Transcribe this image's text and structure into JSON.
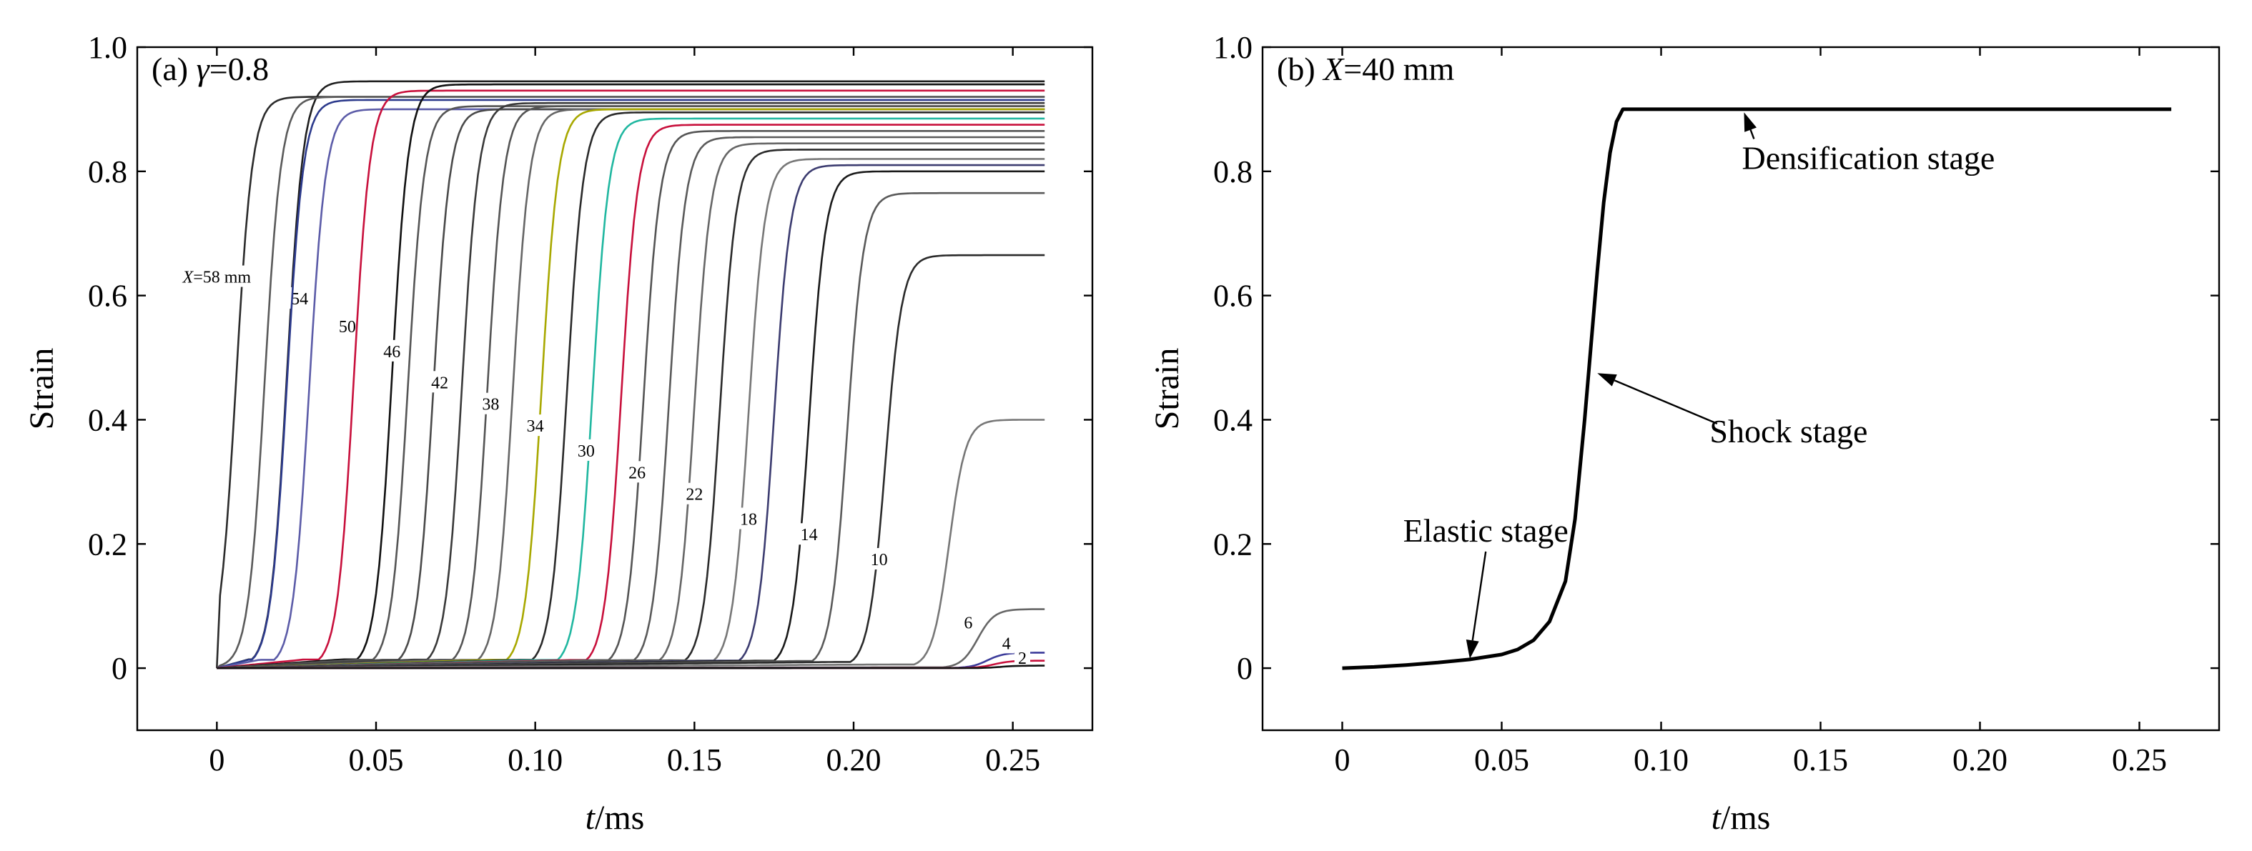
{
  "chart_data": [
    {
      "type": "line",
      "panel_label": "(a)",
      "title_symbol": "γ",
      "title_value": "=0.8",
      "xlabel_var": "t",
      "xlabel_unit": "/ms",
      "ylabel": "Strain",
      "xlim": [
        -0.025,
        0.275
      ],
      "ylim": [
        -0.1,
        1.0
      ],
      "xticks": [
        0,
        0.05,
        0.1,
        0.15,
        0.2,
        0.25
      ],
      "xtick_labels": [
        "0",
        "0.05",
        "0.10",
        "0.15",
        "0.20",
        "0.25"
      ],
      "yticks": [
        0,
        0.2,
        0.4,
        0.6,
        0.8,
        1.0
      ],
      "ytick_labels": [
        "0",
        "0.2",
        "0.4",
        "0.6",
        "0.8",
        "1.0"
      ],
      "grid": false,
      "curve_x_prefix": "X",
      "curve_x_suffix": "=58 mm",
      "series": [
        {
          "name": "58",
          "label": "X=58 mm",
          "t_mid": 0.006,
          "final": 0.92,
          "color": "#2b2b2b",
          "label_at": [
            0.0,
            0.63
          ]
        },
        {
          "name": "56",
          "t_mid": 0.022,
          "final": 0.945,
          "color": "#1f1f1f"
        },
        {
          "name": "54",
          "label": "54",
          "t_mid": 0.015,
          "final": 0.92,
          "color": "#5a5a5a",
          "label_at": [
            0.026,
            0.595
          ]
        },
        {
          "name": "52",
          "t_mid": 0.022,
          "final": 0.915,
          "color": "#2c3a8c"
        },
        {
          "name": "50",
          "label": "50",
          "t_mid": 0.029,
          "final": 0.9,
          "color": "#5c5ca8",
          "label_at": [
            0.041,
            0.55
          ]
        },
        {
          "name": "48",
          "t_mid": 0.043,
          "final": 0.93,
          "color": "#c8103c"
        },
        {
          "name": "46",
          "label": "46",
          "t_mid": 0.055,
          "final": 0.94,
          "color": "#111111",
          "label_at": [
            0.055,
            0.51
          ]
        },
        {
          "name": "44",
          "t_mid": 0.06,
          "final": 0.905,
          "color": "#555555"
        },
        {
          "name": "42",
          "label": "42",
          "t_mid": 0.068,
          "final": 0.9,
          "color": "#4a4a4a",
          "label_at": [
            0.07,
            0.46
          ]
        },
        {
          "name": "40",
          "t_mid": 0.077,
          "final": 0.91,
          "color": "#3a3a3a"
        },
        {
          "name": "38",
          "label": "38",
          "t_mid": 0.085,
          "final": 0.905,
          "color": "#555555",
          "label_at": [
            0.086,
            0.425
          ]
        },
        {
          "name": "36",
          "t_mid": 0.093,
          "final": 0.9,
          "color": "#666666"
        },
        {
          "name": "34",
          "label": "34",
          "t_mid": 0.102,
          "final": 0.9,
          "color": "#a8a800",
          "label_at": [
            0.1,
            0.39
          ]
        },
        {
          "name": "32",
          "t_mid": 0.11,
          "final": 0.895,
          "color": "#2a2a2a"
        },
        {
          "name": "30",
          "label": "30",
          "t_mid": 0.118,
          "final": 0.885,
          "color": "#20b7a0",
          "label_at": [
            0.116,
            0.35
          ]
        },
        {
          "name": "28",
          "t_mid": 0.127,
          "final": 0.875,
          "color": "#c8103c"
        },
        {
          "name": "26",
          "label": "26",
          "t_mid": 0.134,
          "final": 0.865,
          "color": "#555555",
          "label_at": [
            0.132,
            0.315
          ]
        },
        {
          "name": "24",
          "t_mid": 0.142,
          "final": 0.855,
          "color": "#5a5a5a"
        },
        {
          "name": "22",
          "label": "22",
          "t_mid": 0.15,
          "final": 0.845,
          "color": "#666666",
          "label_at": [
            0.15,
            0.28
          ]
        },
        {
          "name": "20",
          "t_mid": 0.158,
          "final": 0.835,
          "color": "#2a2a2a"
        },
        {
          "name": "18",
          "label": "18",
          "t_mid": 0.167,
          "final": 0.82,
          "color": "#777777",
          "label_at": [
            0.167,
            0.24
          ]
        },
        {
          "name": "16",
          "t_mid": 0.175,
          "final": 0.81,
          "color": "#3c3c70"
        },
        {
          "name": "14",
          "label": "14",
          "t_mid": 0.186,
          "final": 0.8,
          "color": "#1a1a1a",
          "label_at": [
            0.186,
            0.215
          ]
        },
        {
          "name": "12",
          "t_mid": 0.198,
          "final": 0.765,
          "color": "#5a5a5a"
        },
        {
          "name": "10",
          "label": "10",
          "t_mid": 0.21,
          "final": 0.665,
          "color": "#2a2a2a",
          "label_at": [
            0.208,
            0.175
          ]
        },
        {
          "name": "8",
          "t_mid": 0.23,
          "final": 0.4,
          "color": "#777777"
        },
        {
          "name": "6",
          "label": "6",
          "t_mid": 0.239,
          "final": 0.095,
          "color": "#666666",
          "label_at": [
            0.236,
            0.073
          ]
        },
        {
          "name": "4",
          "label": "4",
          "t_mid": 0.242,
          "final": 0.025,
          "color": "#3c3c9a",
          "label_at": [
            0.248,
            0.04
          ]
        },
        {
          "name": "2",
          "label": "2",
          "t_mid": 0.244,
          "final": 0.012,
          "color": "#c8103c",
          "label_at": [
            0.253,
            0.016
          ]
        },
        {
          "name": "0",
          "t_mid": 0.246,
          "final": 0.004,
          "color": "#111111"
        }
      ]
    },
    {
      "type": "line",
      "panel_label": "(b)",
      "title_symbol": "X",
      "title_value": "=40 mm",
      "xlabel_var": "t",
      "xlabel_unit": "/ms",
      "ylabel": "Strain",
      "xlim": [
        -0.025,
        0.275
      ],
      "ylim": [
        -0.1,
        1.0
      ],
      "xticks": [
        0,
        0.05,
        0.1,
        0.15,
        0.2,
        0.25
      ],
      "xtick_labels": [
        "0",
        "0.05",
        "0.10",
        "0.15",
        "0.20",
        "0.25"
      ],
      "yticks": [
        0,
        0.2,
        0.4,
        0.6,
        0.8,
        1.0
      ],
      "ytick_labels": [
        "0",
        "0.2",
        "0.4",
        "0.6",
        "0.8",
        "1.0"
      ],
      "grid": false,
      "series": [
        {
          "name": "X=40 mm",
          "x": [
            0,
            0.01,
            0.02,
            0.03,
            0.04,
            0.05,
            0.055,
            0.06,
            0.065,
            0.07,
            0.073,
            0.076,
            0.078,
            0.08,
            0.082,
            0.084,
            0.086,
            0.088,
            0.09,
            0.1,
            0.15,
            0.2,
            0.26
          ],
          "values": [
            0,
            0.002,
            0.005,
            0.009,
            0.014,
            0.022,
            0.03,
            0.045,
            0.075,
            0.14,
            0.24,
            0.4,
            0.52,
            0.64,
            0.75,
            0.83,
            0.88,
            0.9,
            0.9,
            0.9,
            0.9,
            0.9,
            0.9
          ]
        }
      ],
      "annotations": [
        {
          "text": "Densification stage",
          "text_at": [
            0.165,
            0.82
          ],
          "arrow_to": [
            0.126,
            0.895
          ]
        },
        {
          "text": "Shock stage",
          "text_at": [
            0.14,
            0.38
          ],
          "arrow_to": [
            0.08,
            0.475
          ]
        },
        {
          "text": "Elastic stage",
          "text_at": [
            0.045,
            0.22
          ],
          "arrow_to": [
            0.04,
            0.015
          ]
        }
      ]
    }
  ]
}
